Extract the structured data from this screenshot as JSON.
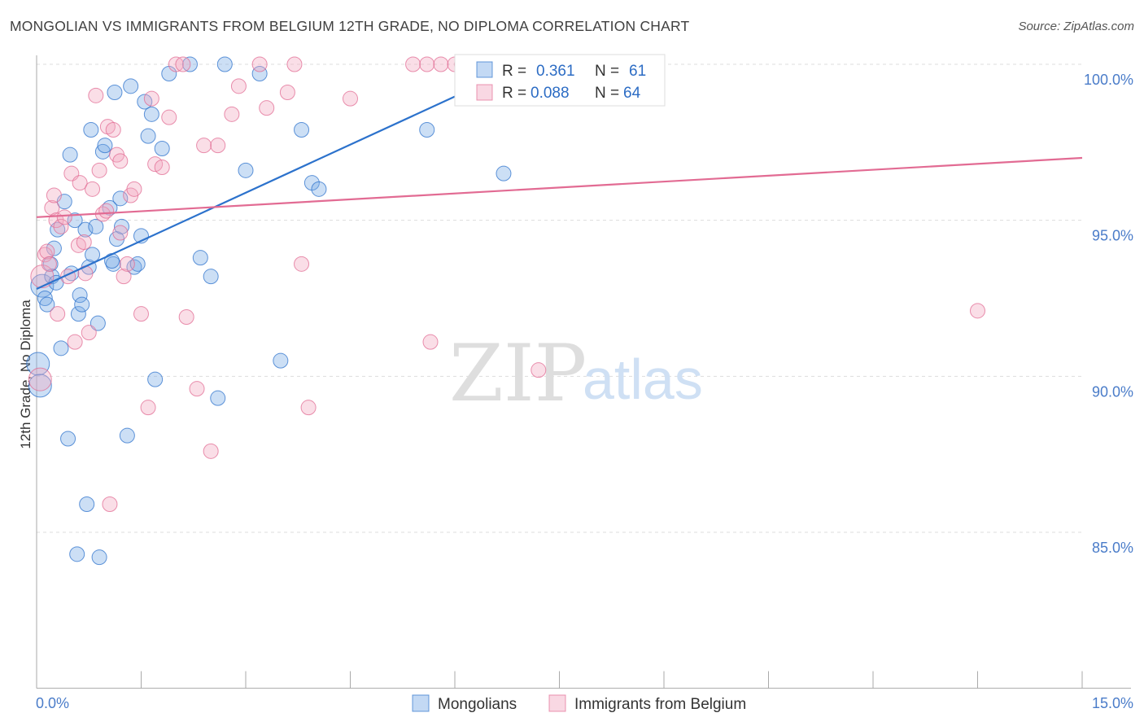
{
  "title": "MONGOLIAN VS IMMIGRANTS FROM BELGIUM 12TH GRADE, NO DIPLOMA CORRELATION CHART",
  "source": "Source: ZipAtlas.com",
  "watermark": {
    "part1": "ZIP",
    "part2": "atlas"
  },
  "colors": {
    "blue": "#7aabe6",
    "blue_line": "#2c72cc",
    "blue_text": "#2c6cc4",
    "pink": "#f1a8c1",
    "pink_line": "#e26b93",
    "grid": "#dddddd",
    "axis": "#aaaaaa"
  },
  "legend": {
    "r_label": "R =",
    "n_label": "N =",
    "rows": [
      {
        "key": "blue",
        "r": "0.361",
        "n": "61"
      },
      {
        "key": "pink",
        "r": "0.088",
        "n": "64"
      }
    ]
  },
  "chart_data": {
    "type": "scatter",
    "title": "MONGOLIAN VS IMMIGRANTS FROM BELGIUM 12TH GRADE, NO DIPLOMA CORRELATION CHART",
    "xlabel": "",
    "ylabel": "12th Grade, No Diploma",
    "xlim": [
      0,
      15
    ],
    "ylim": [
      80,
      100.5
    ],
    "x_tick_labels": [
      {
        "value": 0,
        "label": "0.0%"
      },
      {
        "value": 15,
        "label": "15.0%"
      }
    ],
    "y_tick_labels": [
      {
        "value": 100,
        "label": "100.0%"
      },
      {
        "value": 95,
        "label": "95.0%"
      },
      {
        "value": 90,
        "label": "90.0%"
      },
      {
        "value": 85,
        "label": "85.0%"
      }
    ],
    "legend_position": "bottom-center",
    "series": [
      {
        "name": "Mongolians",
        "color": "blue",
        "r": 0.361,
        "n": 61,
        "trend": {
          "x": [
            0.0,
            7.2
          ],
          "y": [
            92.8,
            100.2
          ]
        },
        "points": [
          [
            0.02,
            90.4
          ],
          [
            0.05,
            89.7
          ],
          [
            0.08,
            92.9
          ],
          [
            0.12,
            92.5
          ],
          [
            0.15,
            92.3
          ],
          [
            0.2,
            93.6
          ],
          [
            0.22,
            93.2
          ],
          [
            0.25,
            94.1
          ],
          [
            0.28,
            93.0
          ],
          [
            0.3,
            94.7
          ],
          [
            0.35,
            90.9
          ],
          [
            0.4,
            95.6
          ],
          [
            0.45,
            88.0
          ],
          [
            0.48,
            97.1
          ],
          [
            0.5,
            93.3
          ],
          [
            0.55,
            95.0
          ],
          [
            0.58,
            84.3
          ],
          [
            0.6,
            92.0
          ],
          [
            0.62,
            92.6
          ],
          [
            0.65,
            92.3
          ],
          [
            0.7,
            94.7
          ],
          [
            0.72,
            85.9
          ],
          [
            0.75,
            93.5
          ],
          [
            0.78,
            97.9
          ],
          [
            0.8,
            93.9
          ],
          [
            0.85,
            94.8
          ],
          [
            0.88,
            91.7
          ],
          [
            0.95,
            97.2
          ],
          [
            0.98,
            97.4
          ],
          [
            1.05,
            95.4
          ],
          [
            1.1,
            93.6
          ],
          [
            1.12,
            99.1
          ],
          [
            1.15,
            94.4
          ],
          [
            1.2,
            95.7
          ],
          [
            1.22,
            94.8
          ],
          [
            1.3,
            88.1
          ],
          [
            1.35,
            99.3
          ],
          [
            1.4,
            93.5
          ],
          [
            1.45,
            93.6
          ],
          [
            1.5,
            94.5
          ],
          [
            1.55,
            98.8
          ],
          [
            1.6,
            97.7
          ],
          [
            1.65,
            98.4
          ],
          [
            1.7,
            89.9
          ],
          [
            1.8,
            97.3
          ],
          [
            1.9,
            99.7
          ],
          [
            2.2,
            100.0
          ],
          [
            2.35,
            93.8
          ],
          [
            2.5,
            93.2
          ],
          [
            2.6,
            89.3
          ],
          [
            2.7,
            100.0
          ],
          [
            3.0,
            96.6
          ],
          [
            3.2,
            99.7
          ],
          [
            3.5,
            90.5
          ],
          [
            3.8,
            97.9
          ],
          [
            3.95,
            96.2
          ],
          [
            4.05,
            96.0
          ],
          [
            5.6,
            97.9
          ],
          [
            6.7,
            96.5
          ],
          [
            0.9,
            84.2
          ],
          [
            1.08,
            93.7
          ]
        ]
      },
      {
        "name": "Immigrants from Belgium",
        "color": "pink",
        "r": 0.088,
        "n": 64,
        "trend": {
          "x": [
            0.0,
            15.0
          ],
          "y": [
            95.1,
            97.0
          ]
        },
        "points": [
          [
            0.05,
            89.9
          ],
          [
            0.08,
            93.2
          ],
          [
            0.12,
            93.9
          ],
          [
            0.15,
            94.0
          ],
          [
            0.18,
            93.6
          ],
          [
            0.22,
            95.4
          ],
          [
            0.25,
            95.8
          ],
          [
            0.28,
            95.0
          ],
          [
            0.3,
            92.0
          ],
          [
            0.35,
            94.8
          ],
          [
            0.4,
            95.1
          ],
          [
            0.45,
            93.2
          ],
          [
            0.5,
            96.5
          ],
          [
            0.55,
            91.1
          ],
          [
            0.6,
            94.2
          ],
          [
            0.62,
            96.2
          ],
          [
            0.68,
            94.3
          ],
          [
            0.7,
            93.3
          ],
          [
            0.75,
            91.4
          ],
          [
            0.8,
            96.0
          ],
          [
            0.85,
            99.0
          ],
          [
            0.9,
            96.6
          ],
          [
            0.95,
            95.2
          ],
          [
            1.0,
            95.3
          ],
          [
            1.02,
            98.0
          ],
          [
            1.05,
            85.9
          ],
          [
            1.1,
            97.9
          ],
          [
            1.15,
            97.1
          ],
          [
            1.2,
            96.9
          ],
          [
            1.25,
            93.2
          ],
          [
            1.3,
            93.6
          ],
          [
            1.35,
            95.8
          ],
          [
            1.4,
            96.0
          ],
          [
            1.5,
            92.0
          ],
          [
            1.6,
            89.0
          ],
          [
            1.65,
            98.9
          ],
          [
            1.7,
            96.8
          ],
          [
            1.8,
            96.7
          ],
          [
            1.9,
            98.3
          ],
          [
            2.0,
            100.0
          ],
          [
            2.1,
            100.0
          ],
          [
            2.15,
            91.9
          ],
          [
            2.3,
            89.6
          ],
          [
            2.4,
            97.4
          ],
          [
            2.5,
            87.6
          ],
          [
            2.6,
            97.4
          ],
          [
            2.8,
            98.4
          ],
          [
            2.9,
            99.3
          ],
          [
            3.2,
            100.0
          ],
          [
            3.3,
            98.6
          ],
          [
            3.6,
            99.1
          ],
          [
            3.7,
            100.0
          ],
          [
            3.8,
            93.6
          ],
          [
            3.9,
            89.0
          ],
          [
            4.5,
            98.9
          ],
          [
            5.4,
            100.0
          ],
          [
            5.6,
            100.0
          ],
          [
            5.8,
            100.0
          ],
          [
            6.0,
            100.0
          ],
          [
            6.1,
            100.0
          ],
          [
            7.2,
            90.2
          ],
          [
            13.5,
            92.1
          ],
          [
            5.65,
            91.1
          ],
          [
            1.2,
            94.6
          ]
        ]
      }
    ]
  },
  "bottom_legend": [
    {
      "key": "blue",
      "label": "Mongolians"
    },
    {
      "key": "pink",
      "label": "Immigrants from Belgium"
    }
  ]
}
